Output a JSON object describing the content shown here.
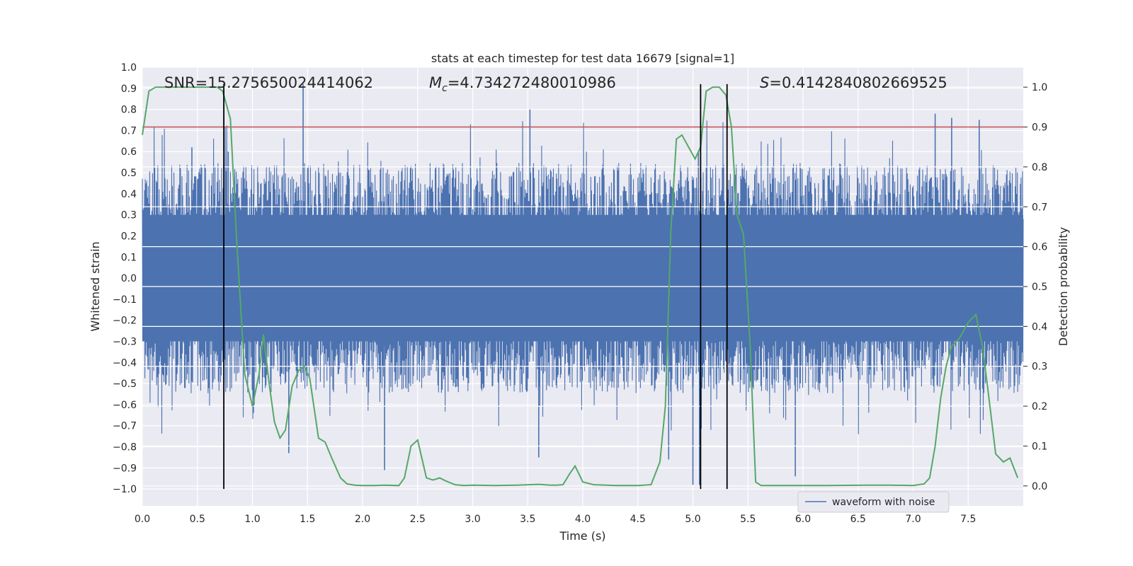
{
  "chart_data": {
    "type": "line",
    "title": "stats at each timestep for test data 16679 [signal=1]",
    "xlabel": "Time (s)",
    "ylabel_left": "Whitened strain",
    "ylabel_right": "Detection probability",
    "xlim": [
      0.0,
      8.0
    ],
    "ylim_left": [
      -1.08,
      1.0
    ],
    "ylim_right": [
      -0.05,
      1.05
    ],
    "xticks": [
      "0.0",
      "0.5",
      "1.0",
      "1.5",
      "2.0",
      "2.5",
      "3.0",
      "3.5",
      "4.0",
      "4.5",
      "5.0",
      "5.5",
      "6.0",
      "6.5",
      "7.0",
      "7.5"
    ],
    "yticks_left": [
      "1.0",
      "0.9",
      "0.8",
      "0.7",
      "0.6",
      "0.5",
      "0.4",
      "0.3",
      "0.2",
      "0.1",
      "0.0",
      "−0.1",
      "−0.2",
      "−0.3",
      "−0.4",
      "−0.5",
      "−0.6",
      "−0.7",
      "−0.8",
      "−0.9",
      "−1.0"
    ],
    "yticks_right": [
      "1.0",
      "0.9",
      "0.8",
      "0.7",
      "0.6",
      "0.5",
      "0.4",
      "0.3",
      "0.2",
      "0.1",
      "0.0"
    ],
    "annotations": {
      "snr": "SNR=15.275650024414062",
      "mc_symbol": "M",
      "mc_sub": "c",
      "mc_value": "=4.734272480010986",
      "s_symbol": "S",
      "s_value": "=0.4142840802669525"
    },
    "legend": {
      "label": "waveform with noise",
      "position": "lower-right"
    },
    "threshold": {
      "value": 0.9,
      "axis": "right",
      "color": "#c44e52"
    },
    "vlines": [
      {
        "x": 0.74,
        "y_from": -1.0,
        "y_to": 0.92
      },
      {
        "x": 5.07,
        "y_from": -1.0,
        "y_to": 0.92
      },
      {
        "x": 5.31,
        "y_from": -1.0,
        "y_to": 0.92
      }
    ],
    "waveform": {
      "name": "waveform with noise",
      "color": "#4c72b0",
      "t_start": 0.0,
      "t_end": 8.0,
      "core_amplitude": 0.3,
      "typical_amplitude": 0.42,
      "peaks": [
        {
          "x": 0.45,
          "y": 0.62
        },
        {
          "x": 0.78,
          "y": 0.6
        },
        {
          "x": 1.46,
          "y": 0.92
        },
        {
          "x": 3.52,
          "y": 0.8
        },
        {
          "x": 5.05,
          "y": 0.6
        },
        {
          "x": 7.2,
          "y": 0.78
        },
        {
          "x": 7.35,
          "y": 0.76
        },
        {
          "x": 7.6,
          "y": 0.75
        },
        {
          "x": 1.33,
          "y": -0.83
        },
        {
          "x": 2.2,
          "y": -0.91
        },
        {
          "x": 4.78,
          "y": -0.86
        },
        {
          "x": 5.0,
          "y": -0.98
        },
        {
          "x": 5.06,
          "y": -0.98
        },
        {
          "x": 5.93,
          "y": -0.94
        },
        {
          "x": 3.6,
          "y": -0.85
        }
      ]
    },
    "series": [
      {
        "name": "Detection probability",
        "color": "#55a868",
        "axis": "right",
        "x": [
          0.0,
          0.06,
          0.12,
          0.2,
          0.3,
          0.4,
          0.5,
          0.6,
          0.68,
          0.73,
          0.8,
          0.86,
          0.93,
          1.0,
          1.06,
          1.1,
          1.15,
          1.2,
          1.25,
          1.3,
          1.36,
          1.42,
          1.47,
          1.52,
          1.6,
          1.66,
          1.72,
          1.8,
          1.86,
          1.93,
          2.0,
          2.1,
          2.2,
          2.33,
          2.38,
          2.44,
          2.5,
          2.58,
          2.64,
          2.7,
          2.76,
          2.84,
          2.92,
          3.0,
          3.2,
          3.4,
          3.6,
          3.7,
          3.76,
          3.82,
          3.88,
          3.93,
          4.0,
          4.1,
          4.3,
          4.5,
          4.62,
          4.7,
          4.75,
          4.8,
          4.85,
          4.9,
          4.96,
          5.02,
          5.07,
          5.12,
          5.18,
          5.24,
          5.3,
          5.35,
          5.4,
          5.46,
          5.52,
          5.57,
          5.62,
          5.8,
          6.2,
          6.6,
          6.8,
          7.0,
          7.1,
          7.15,
          7.2,
          7.25,
          7.3,
          7.35,
          7.42,
          7.5,
          7.57,
          7.63,
          7.68,
          7.75,
          7.82,
          7.88,
          7.95
        ],
        "values": [
          0.88,
          0.99,
          1.0,
          1.0,
          1.0,
          1.0,
          1.0,
          1.0,
          1.0,
          0.99,
          0.92,
          0.6,
          0.28,
          0.2,
          0.28,
          0.38,
          0.26,
          0.16,
          0.12,
          0.14,
          0.25,
          0.29,
          0.3,
          0.27,
          0.12,
          0.11,
          0.07,
          0.02,
          0.005,
          0.002,
          0.001,
          0.001,
          0.002,
          0.001,
          0.02,
          0.1,
          0.115,
          0.02,
          0.015,
          0.02,
          0.012,
          0.003,
          0.001,
          0.002,
          0.001,
          0.002,
          0.004,
          0.002,
          0.002,
          0.003,
          0.03,
          0.05,
          0.01,
          0.003,
          0.001,
          0.001,
          0.003,
          0.06,
          0.2,
          0.64,
          0.87,
          0.88,
          0.85,
          0.82,
          0.85,
          0.99,
          1.0,
          1.0,
          0.98,
          0.9,
          0.68,
          0.63,
          0.35,
          0.01,
          0.001,
          0.001,
          0.001,
          0.002,
          0.002,
          0.001,
          0.005,
          0.02,
          0.1,
          0.22,
          0.3,
          0.35,
          0.37,
          0.41,
          0.43,
          0.35,
          0.24,
          0.08,
          0.06,
          0.07,
          0.02
        ]
      }
    ]
  }
}
